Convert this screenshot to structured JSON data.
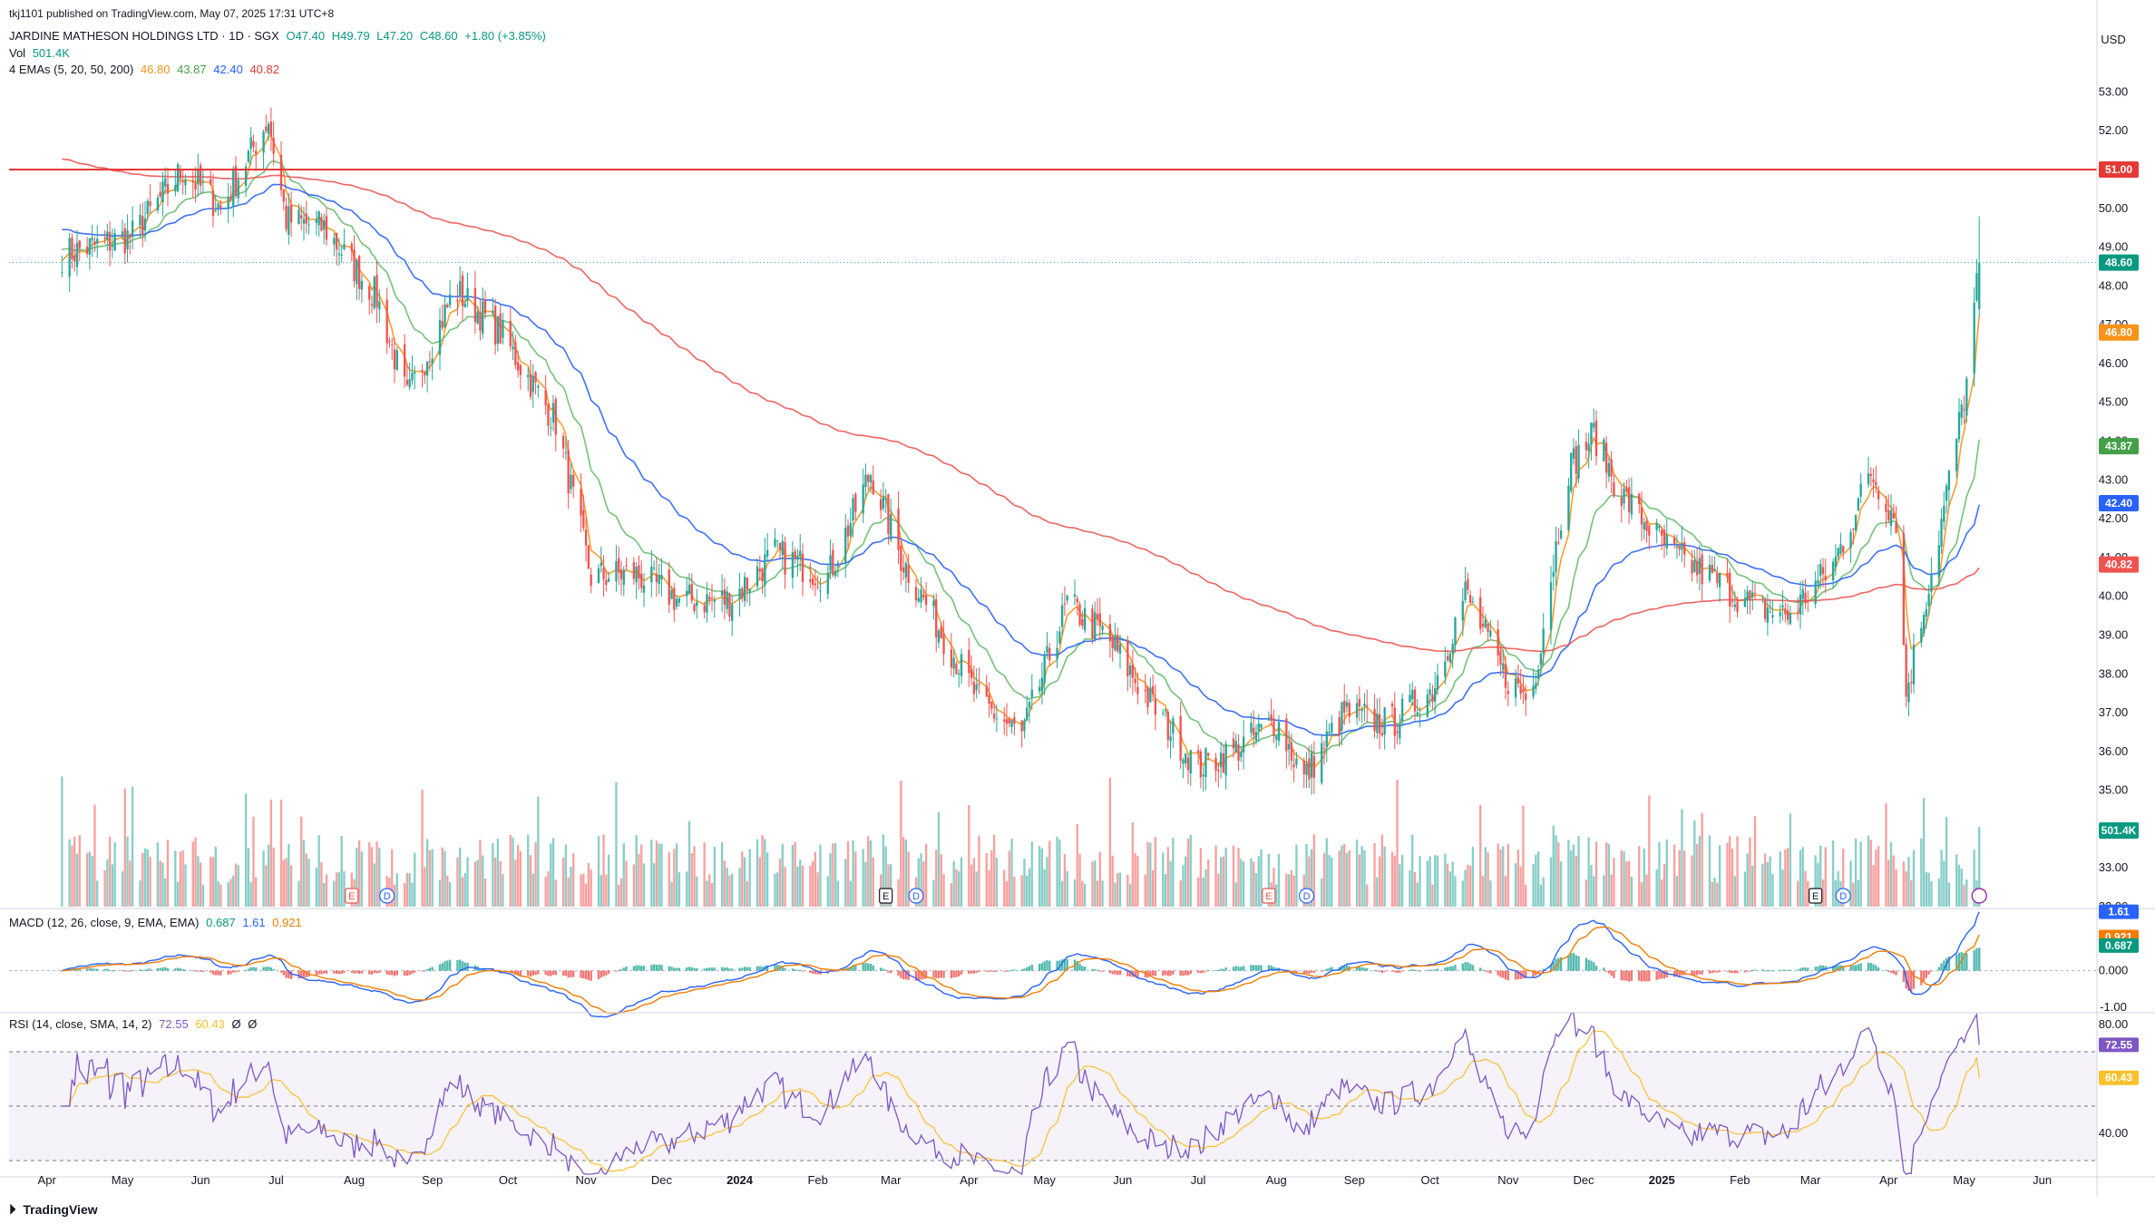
{
  "publisher": "tkj1101 published on TradingView.com, May 07, 2025 17:31 UTC+8",
  "currency": "USD",
  "footer_brand": "TradingView",
  "colors": {
    "up": "#26a69a",
    "down": "#ef5350",
    "ema5": "#f7931a",
    "ema20": "#66bb6a",
    "ema50": "#2962ff",
    "ema200": "#ef5350",
    "hline": "#e53935",
    "rsi": "#7e57c2",
    "rsi_ma": "#fbc02d"
  },
  "header": {
    "symbol": "JARDINE MATHESON HOLDINGS LTD · 1D · SGX",
    "open": "O47.40",
    "high": "H49.79",
    "low": "L47.20",
    "close": "C48.60",
    "change": "+1.80 (+3.85%)",
    "vol_label": "Vol",
    "vol_value": "501.4K",
    "ema_label": "4 EMAs (5, 20, 50, 200)",
    "ema_values": [
      "46.80",
      "43.87",
      "42.40",
      "40.82"
    ],
    "macd_label": "MACD (12, 26, close, 9, EMA, EMA)",
    "macd_values": [
      "0.687",
      "1.61",
      "0.921"
    ],
    "rsi_label": "RSI (14, close, SMA, 14, 2)",
    "rsi_values": [
      "72.55",
      "60.43",
      "Ø",
      "Ø"
    ]
  },
  "chart_data": [
    {
      "type": "line",
      "panel": "price",
      "title": "JARDINE MATHESON HOLDINGS LTD · 1D · SGX",
      "y_ticks": [
        "53.00",
        "52.00",
        "51.00",
        "50.00",
        "49.00",
        "48.00",
        "47.00",
        "46.00",
        "45.00",
        "44.00",
        "43.00",
        "42.00",
        "41.00",
        "40.00",
        "39.00",
        "38.00",
        "37.00",
        "36.00",
        "35.00",
        "34.00",
        "33.00",
        "32.00"
      ],
      "ylim": [
        32,
        53.5
      ],
      "x_ticks": [
        "Apr",
        "May",
        "Jun",
        "Jul",
        "Aug",
        "Sep",
        "Oct",
        "Nov",
        "Dec",
        "2024",
        "Feb",
        "Mar",
        "Apr",
        "May",
        "Jun",
        "Jul",
        "Aug",
        "Sep",
        "Oct",
        "Nov",
        "Dec",
        "2025",
        "Feb",
        "Mar",
        "Apr",
        "May",
        "Jun"
      ],
      "x_dates": [
        "2023-04-01",
        "2023-05-01",
        "2023-06-01",
        "2023-07-01",
        "2023-08-01",
        "2023-09-01",
        "2023-10-01",
        "2023-11-01",
        "2023-12-01",
        "2024-01-01",
        "2024-02-01",
        "2024-03-01",
        "2024-04-01",
        "2024-05-01",
        "2024-06-01",
        "2024-07-01",
        "2024-08-01",
        "2024-09-01",
        "2024-10-01",
        "2024-11-01",
        "2024-12-01",
        "2025-01-01",
        "2025-02-01",
        "2025-03-01",
        "2025-04-01",
        "2025-05-01",
        "2025-06-01"
      ],
      "x_first": "2023-04-07",
      "x_last": "2025-05-07",
      "close_approx": {
        "dates": [
          "2023-04-07",
          "2023-05-05",
          "2023-05-25",
          "2023-06-09",
          "2023-06-28",
          "2023-07-05",
          "2023-07-20",
          "2023-08-10",
          "2023-08-22",
          "2023-09-10",
          "2023-09-28",
          "2023-10-20",
          "2023-11-03",
          "2023-11-20",
          "2023-12-08",
          "2023-12-28",
          "2024-01-15",
          "2024-02-05",
          "2024-02-22",
          "2024-03-05",
          "2024-03-20",
          "2024-04-05",
          "2024-04-22",
          "2024-05-10",
          "2024-05-25",
          "2024-06-15",
          "2024-07-01",
          "2024-07-15",
          "2024-08-01",
          "2024-08-12",
          "2024-08-28",
          "2024-09-15",
          "2024-10-02",
          "2024-10-15",
          "2024-10-30",
          "2024-11-10",
          "2024-11-25",
          "2024-12-05",
          "2024-12-15",
          "2025-01-05",
          "2025-01-20",
          "2025-02-05",
          "2025-02-20",
          "2025-03-10",
          "2025-03-25",
          "2025-04-04",
          "2025-04-08",
          "2025-04-22",
          "2025-05-02",
          "2025-05-07"
        ],
        "values": [
          48.8,
          49.3,
          51.0,
          50.0,
          52.3,
          49.7,
          49.5,
          47.7,
          45.1,
          47.9,
          46.8,
          44.5,
          40.5,
          40.6,
          39.9,
          39.9,
          41.1,
          40.5,
          43.2,
          41.0,
          39.2,
          37.3,
          36.4,
          39.8,
          39.0,
          37.0,
          35.6,
          36.0,
          36.8,
          35.3,
          37.0,
          36.7,
          37.6,
          40.1,
          38.0,
          37.3,
          43.3,
          44.2,
          42.7,
          41.1,
          40.5,
          39.8,
          39.5,
          40.8,
          43.2,
          42.0,
          37.5,
          41.9,
          45.5,
          48.6
        ]
      },
      "ema_last": {
        "EMA 5": 46.8,
        "EMA 20": 43.87,
        "EMA 50": 42.4,
        "EMA 200": 40.82
      },
      "horizontal_line": 51.0,
      "last_price": 48.6,
      "volume_last": "501.4K",
      "event_markers": [
        "E",
        "D",
        "E",
        "D",
        "E",
        "D",
        "E",
        "D"
      ]
    },
    {
      "type": "line",
      "panel": "macd",
      "title": "MACD (12, 26, close, 9, EMA, EMA)",
      "y_ticks": [
        "0.000",
        "-1.00"
      ],
      "ylim": [
        -1.1,
        1.75
      ],
      "last": {
        "histogram": 0.687,
        "macd": 1.61,
        "signal": 0.921
      }
    },
    {
      "type": "line",
      "panel": "rsi",
      "title": "RSI (14, close, SMA, 14, 2)",
      "y_ticks": [
        "80.00",
        "40.00"
      ],
      "ylim": [
        25,
        85
      ],
      "bands": [
        70,
        50,
        30
      ],
      "last": {
        "rsi": 72.55,
        "rsi_ma": 60.43
      }
    }
  ]
}
